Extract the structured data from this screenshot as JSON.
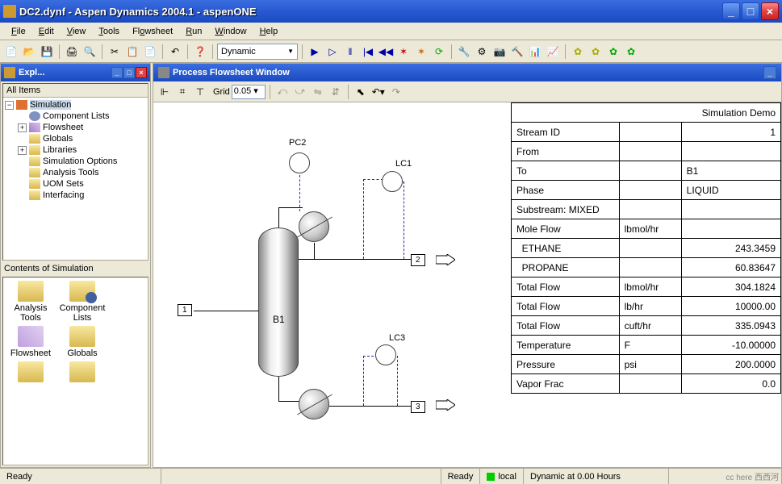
{
  "window": {
    "title": "DC2.dynf - Aspen Dynamics 2004.1 - aspenONE"
  },
  "menu": {
    "file": "File",
    "edit": "Edit",
    "view": "View",
    "tools": "Tools",
    "flowsheet": "Flowsheet",
    "run": "Run",
    "window": "Window",
    "help": "Help"
  },
  "toolbar": {
    "mode": "Dynamic"
  },
  "explorer": {
    "title": "Expl...",
    "header": "All Items",
    "root": "Simulation",
    "items": [
      "Component Lists",
      "Flowsheet",
      "Globals",
      "Libraries",
      "Simulation Options",
      "Analysis Tools",
      "UOM Sets",
      "Interfacing"
    ],
    "contents_label": "Contents of Simulation",
    "contents": [
      "Analysis Tools",
      "Component Lists",
      "Flowsheet",
      "Globals"
    ]
  },
  "flowsheet": {
    "title": "Process Flowsheet Window",
    "grid_label": "Grid",
    "grid_value": "0.05",
    "blocks": {
      "b1": "B1",
      "pc2": "PC2",
      "lc1": "LC1",
      "lc3": "LC3"
    },
    "streams": {
      "s1": "1",
      "s2": "2",
      "s3": "3"
    }
  },
  "stream_table": {
    "title": "Simulation Demo",
    "rows": [
      {
        "label": "Stream ID",
        "unit": "",
        "value": "1"
      },
      {
        "label": "From",
        "unit": "",
        "value": ""
      },
      {
        "label": "To",
        "unit": "",
        "value": "B1"
      },
      {
        "label": "Phase",
        "unit": "",
        "value": "LIQUID"
      },
      {
        "label": "Substream: MIXED",
        "unit": "",
        "value": ""
      },
      {
        "label": "Mole Flow",
        "unit": "lbmol/hr",
        "value": ""
      },
      {
        "label": "  ETHANE",
        "unit": "",
        "value": "243.3459"
      },
      {
        "label": "  PROPANE",
        "unit": "",
        "value": "60.83647"
      },
      {
        "label": "Total Flow",
        "unit": "lbmol/hr",
        "value": "304.1824"
      },
      {
        "label": "Total Flow",
        "unit": "lb/hr",
        "value": "10000.00"
      },
      {
        "label": "Total Flow",
        "unit": "cuft/hr",
        "value": "335.0943"
      },
      {
        "label": "Temperature",
        "unit": "F",
        "value": "-10.00000"
      },
      {
        "label": "Pressure",
        "unit": "psi",
        "value": "200.0000"
      },
      {
        "label": "Vapor Frac",
        "unit": "",
        "value": "0.0"
      }
    ]
  },
  "status": {
    "ready1": "Ready",
    "ready2": "Ready",
    "local": "local",
    "dynamic": "Dynamic at 0.00 Hours",
    "watermark": "cc here  西西河"
  },
  "colors": {
    "titlebar": "#2959d0",
    "bg": "#ece9d8"
  }
}
